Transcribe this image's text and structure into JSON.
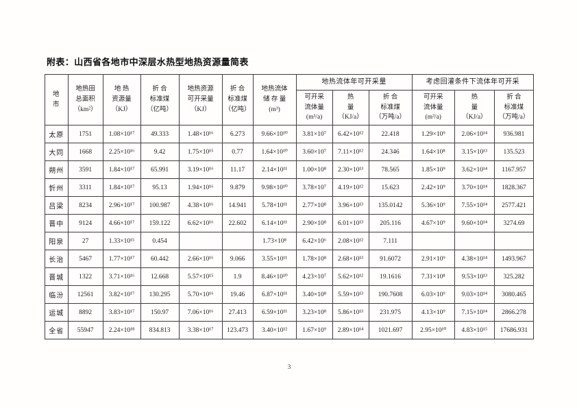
{
  "page": {
    "title": "附表：山西省各地市中深层水热型地热资源量简表",
    "page_number": "3"
  },
  "table": {
    "static_headers": [
      {
        "text": "地\n市"
      },
      {
        "text": "地热田\n总面积\n（km²）"
      },
      {
        "text": "地  热\n资源量\n（KJ）"
      },
      {
        "text": "折  合\n标准煤\n（亿吨）"
      },
      {
        "text": "地热资源\n可开采量\n（KJ）"
      },
      {
        "text": "折  合\n标准煤\n（亿吨）"
      },
      {
        "text": "地热流体\n储 存 量\n(m³)"
      }
    ],
    "group_headers": [
      "地热流体年可开采量",
      "考虑回灌条件下流体年可开采"
    ],
    "sub_headers": [
      {
        "text": "可开采\n流体量\n(m³/a)"
      },
      {
        "text": "热\n量\n（KJ/a）"
      },
      {
        "text": "折  合\n标准煤\n（万吨/a）"
      },
      {
        "text": "可开采\n流体量\n(m³/a)"
      },
      {
        "text": "热\n量\n（KJ/a）"
      },
      {
        "text": "折  合\n标准煤\n（万吨/a）"
      }
    ],
    "rows": [
      {
        "name": "太原",
        "values": [
          "1751",
          "1.08×10¹⁷",
          "49.333",
          "1.48×10¹⁶",
          "6.273",
          "9.66×10¹⁰",
          "3.81×10⁷",
          "6.42×10¹²",
          "22.418",
          "1.29×10⁹",
          "2.06×10¹⁴",
          "936.981"
        ]
      },
      {
        "name": "大同",
        "values": [
          "1668",
          "2.25×10¹⁶",
          "9.42",
          "1.75×10¹⁵",
          "0.77",
          "1.64×10¹⁰",
          "3.60×10⁷",
          "7.11×10¹²",
          "24.346",
          "1.64×10⁸",
          "3.15×10¹³",
          "135.523"
        ]
      },
      {
        "name": "朔州",
        "values": [
          "3591",
          "1.84×10¹⁷",
          "65.991",
          "3.19×10¹⁶",
          "11.17",
          "2.14×10¹¹",
          "1.00×10⁸",
          "2.30×10¹³",
          "78.565",
          "1.85×10⁹",
          "3.62×10¹⁴",
          "1167.957"
        ]
      },
      {
        "name": "忻州",
        "values": [
          "3311",
          "1.84×10¹⁷",
          "95.13",
          "1.94×10¹⁶",
          "9.879",
          "9.98×10¹⁰",
          "3.78×10⁷",
          "4.19×10¹²",
          "15.623",
          "2.42×10⁹",
          "3.70×10¹⁴",
          "1828.367"
        ]
      },
      {
        "name": "吕梁",
        "values": [
          "8234",
          "2.96×10¹⁷",
          "100.987",
          "4.38×10¹⁶",
          "14.941",
          "5.78×10¹¹",
          "2.77×10⁸",
          "3.96×10¹³",
          "135.0142",
          "5.36×10⁹",
          "7.55×10¹⁴",
          "2577.421"
        ]
      },
      {
        "name": "晋中",
        "values": [
          "9124",
          "4.66×10¹⁷",
          "159.122",
          "6.62×10¹⁶",
          "22.602",
          "6.14×10¹¹",
          "2.90×10⁸",
          "6.01×10¹³",
          "205.116",
          "4.67×10⁹",
          "9.60×10¹⁴",
          "3274.69"
        ]
      },
      {
        "name": "阳泉",
        "values": [
          "27",
          "1.33×10¹⁵",
          "0.454",
          "",
          "",
          "1.73×10⁸",
          "6.42×10⁶",
          "2.08×10¹²",
          "7.111",
          "",
          "",
          ""
        ]
      },
      {
        "name": "长治",
        "values": [
          "5467",
          "1.77×10¹⁷",
          "60.442",
          "2.66×10¹⁶",
          "9.066",
          "3.55×10¹¹",
          "1.78×10⁸",
          "2.68×10¹³",
          "91.6072",
          "2.91×10⁹",
          "4.38×10¹⁴",
          "1493.967"
        ]
      },
      {
        "name": "晋城",
        "values": [
          "1322",
          "3.71×10¹⁶",
          "12.668",
          "5.57×10¹⁵",
          "1.9",
          "8.46×10¹⁰",
          "4.23×10⁷",
          "5.62×10¹²",
          "19.1616",
          "7.31×10⁸",
          "9.53×10¹³",
          "325.282"
        ]
      },
      {
        "name": "临汾",
        "values": [
          "12561",
          "3.82×10¹⁷",
          "130.295",
          "5.70×10¹⁶",
          "19.46",
          "6.87×10¹¹",
          "3.40×10⁸",
          "5.59×10¹³",
          "190.7608",
          "6.03×10⁹",
          "9.03×10¹⁴",
          "3080.465"
        ]
      },
      {
        "name": "运城",
        "values": [
          "8892",
          "3.83×10¹⁷",
          "150.97",
          "7.06×10¹⁶",
          "27.413",
          "6.59×10¹¹",
          "3.23×10⁸",
          "5.86×10¹³",
          "231.975",
          "4.13×10⁹",
          "7.15×10¹⁴",
          "2866.278"
        ]
      },
      {
        "name": "全省",
        "values": [
          "55947",
          "2.24×10¹⁸",
          "834.813",
          "3.38×10¹⁷",
          "123.473",
          "3.40×10¹²",
          "1.67×10⁹",
          "2.89×10¹⁴",
          "1021.697",
          "2.95×10¹⁰",
          "4.83×10¹⁵",
          "17686.931"
        ]
      }
    ]
  }
}
